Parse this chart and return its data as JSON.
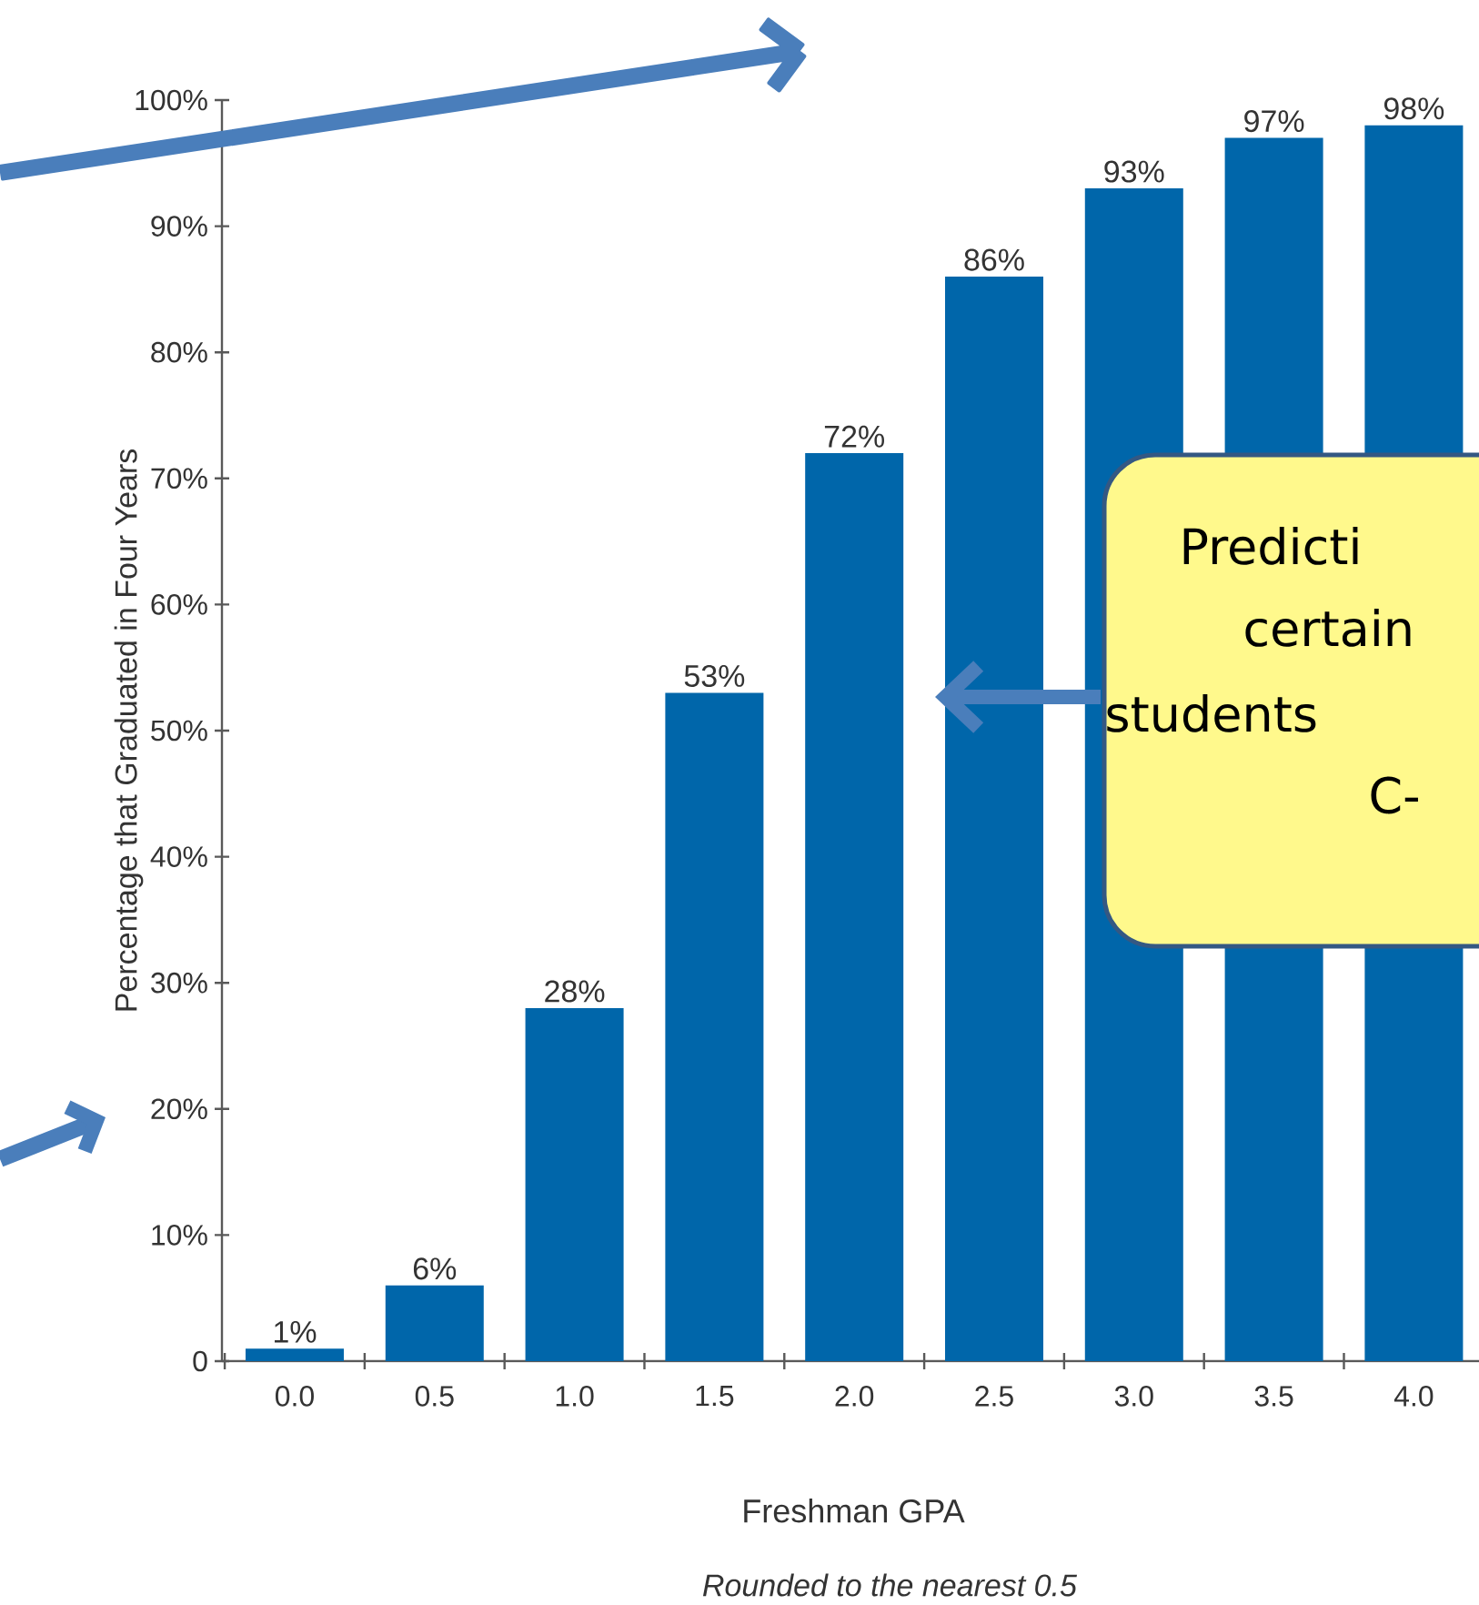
{
  "chart_data": {
    "type": "bar",
    "categories": [
      "0.0",
      "0.5",
      "1.0",
      "1.5",
      "2.0",
      "2.5",
      "3.0",
      "3.5",
      "4.0"
    ],
    "values": [
      1,
      6,
      28,
      53,
      72,
      86,
      93,
      97,
      98
    ],
    "value_labels": [
      "1%",
      "6%",
      "28%",
      "53%",
      "72%",
      "86%",
      "93%",
      "97%",
      "98%"
    ],
    "color": "#0066aa",
    "ylim": [
      0,
      100
    ],
    "yticks": [
      0,
      {
        "value": 10,
        "label": "10%"
      },
      {
        "value": 20,
        "label": "20%"
      },
      {
        "value": 30,
        "label": "30%"
      },
      {
        "value": 40,
        "label": "40%"
      },
      {
        "value": 50,
        "label": "50%"
      },
      {
        "value": 60,
        "label": "60%"
      },
      {
        "value": 70,
        "label": "70%"
      },
      {
        "value": 80,
        "label": "80%"
      },
      {
        "value": 90,
        "label": "90%"
      },
      {
        "value": 100,
        "label": "100%"
      }
    ],
    "xlabel": "Freshman GPA",
    "ylabel": "Percentage that Graduated in Four Years",
    "annotations": [
      "*Rounded to the nearest 0.5*",
      "Predicti",
      "certain",
      "students",
      "C-"
    ]
  }
}
